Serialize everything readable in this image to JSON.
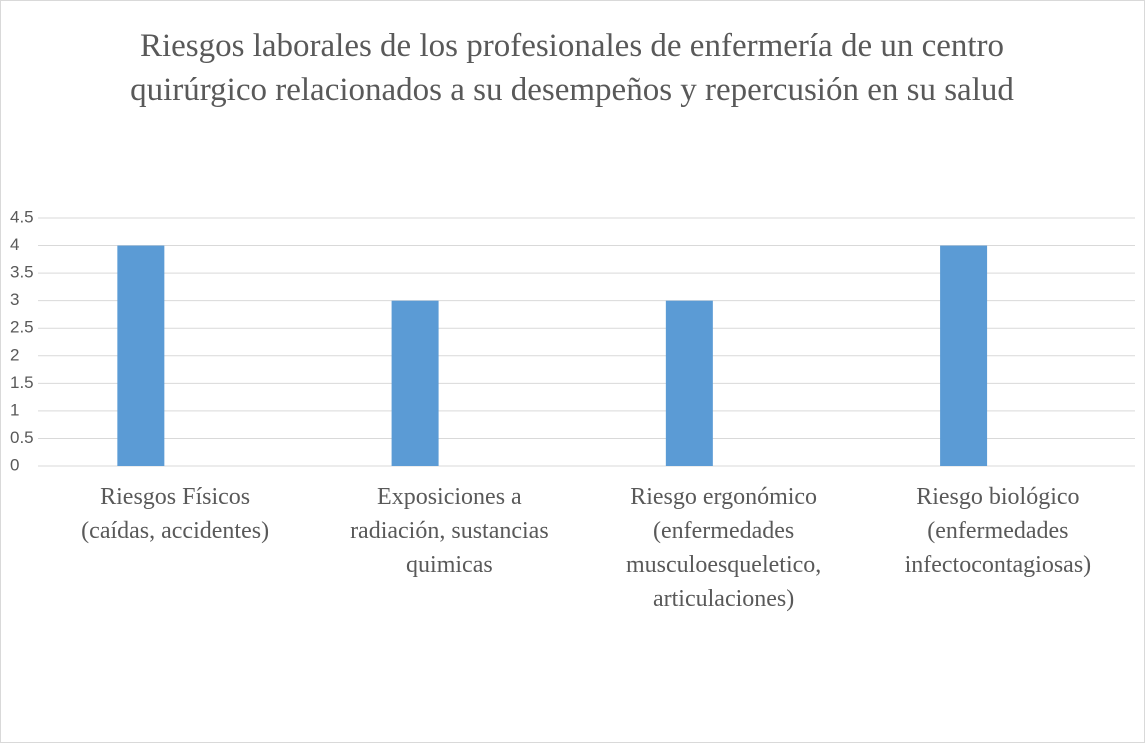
{
  "chart_data": {
    "type": "bar",
    "title": "Riesgos laborales de los profesionales de enfermería de un centro quirúrgico relacionados a su desempeños y repercusión en su salud",
    "categories": [
      "Riesgos Físicos\n(caídas, accidentes)",
      "Exposiciones a\nradiación, sustancias\nquimicas",
      "Riesgo ergonómico\n(enfermedades\nmusculoesqueletico,\narticulaciones)",
      "Riesgo biológico\n(enfermedades\ninfectocontagiosas)"
    ],
    "values": [
      4,
      3,
      3,
      4
    ],
    "color": "#5b9bd5",
    "ylim": [
      0,
      4.5
    ],
    "yticks": [
      0,
      0.5,
      1,
      1.5,
      2,
      2.5,
      3,
      3.5,
      4,
      4.5
    ],
    "grid": true
  }
}
